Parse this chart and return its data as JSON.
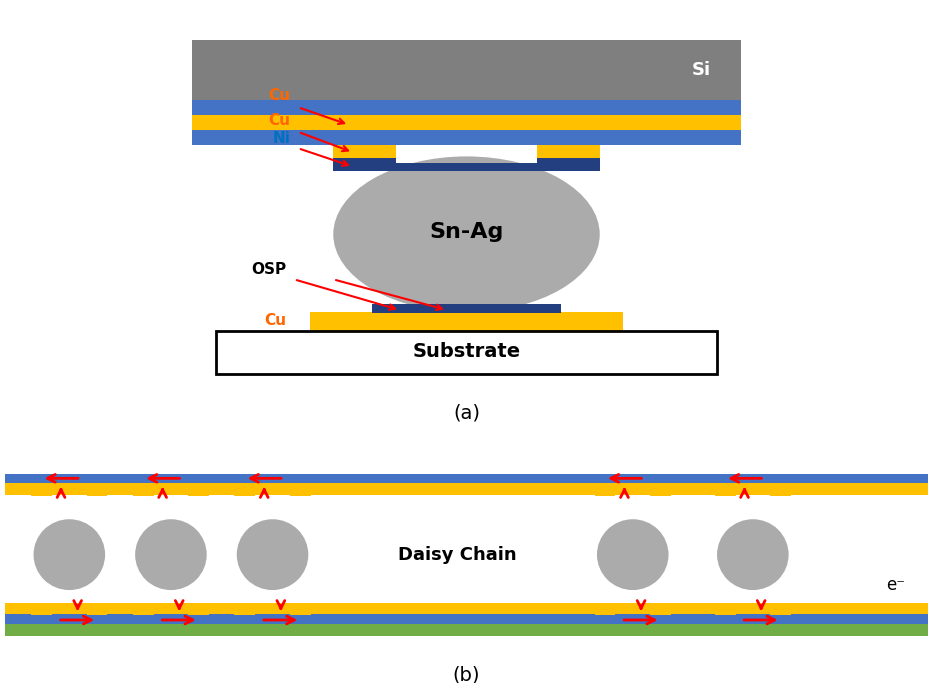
{
  "colors": {
    "si_gray": "#7F7F7F",
    "blue_layer": "#4472C4",
    "gold_cu": "#FFC000",
    "dark_blue_ni": "#243F7F",
    "solder_gray": "#ABABAB",
    "green_layer": "#70AD47",
    "red_arrow": "#FF0000",
    "orange_cu": "#FF6600",
    "background": "#FFFFFF",
    "white": "#FFFFFF",
    "black": "#000000",
    "blue_label": "#0070C0"
  },
  "label_a": "(a)",
  "label_b": "(b)",
  "diagram_a": {
    "si_label": "Si",
    "cu_top_label": "Cu",
    "cu_mid_label": "Cu",
    "ni_label": "Ni",
    "snag_label": "Sn-Ag",
    "osp_label": "OSP",
    "cu_bot_label": "Cu",
    "substrate_label": "Substrate"
  },
  "diagram_b": {
    "daisy_chain_label": "Daisy Chain",
    "electron_label": "e⁻"
  }
}
